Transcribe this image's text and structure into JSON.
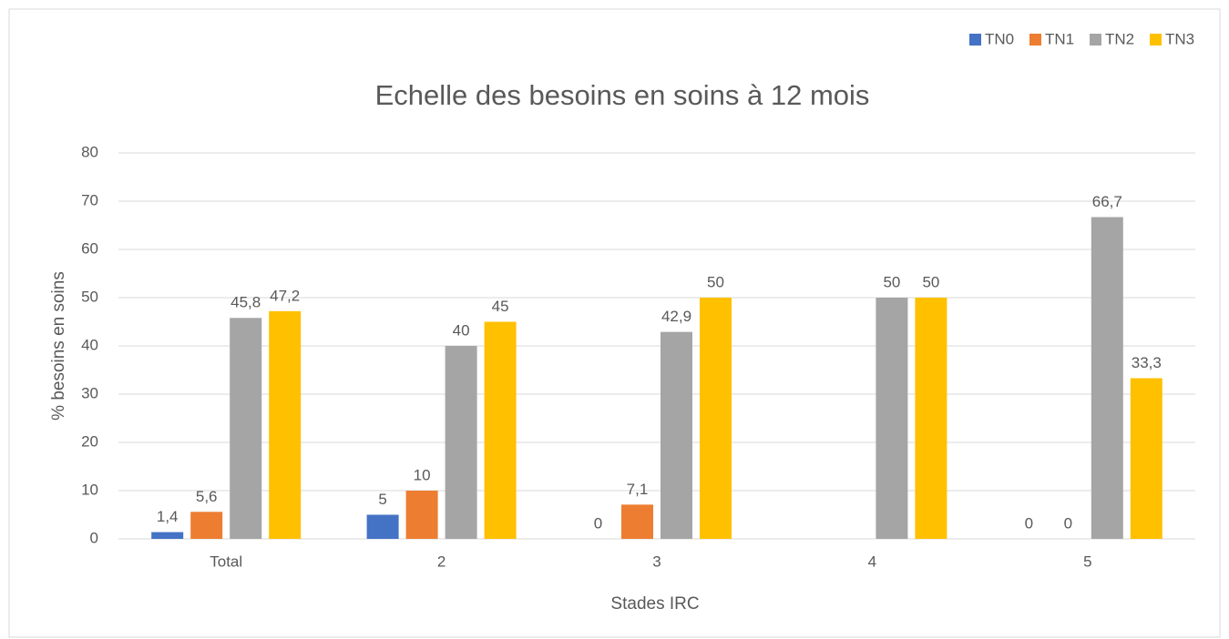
{
  "chart_data": {
    "type": "bar",
    "title": "Echelle des besoins en soins à 12 mois",
    "x_label": "Stades IRC",
    "y_label": "% besoins en soins",
    "categories": [
      "Total",
      "2",
      "3",
      "4",
      "5"
    ],
    "series": [
      {
        "name": "TN0",
        "color": "#4472c4",
        "values": [
          1.4,
          5,
          0,
          null,
          0
        ],
        "value_labels": [
          "1,4",
          "5",
          "0",
          null,
          "0"
        ]
      },
      {
        "name": "TN1",
        "color": "#ed7d31",
        "values": [
          5.6,
          10,
          7.1,
          null,
          0
        ],
        "value_labels": [
          "5,6",
          "10",
          "7,1",
          null,
          "0"
        ]
      },
      {
        "name": "TN2",
        "color": "#a5a5a5",
        "values": [
          45.8,
          40,
          42.9,
          50,
          66.7
        ],
        "value_labels": [
          "45,8",
          "40",
          "42,9",
          "50",
          "66,7"
        ]
      },
      {
        "name": "TN3",
        "color": "#ffc000",
        "values": [
          47.2,
          45,
          50,
          50,
          33.3
        ],
        "value_labels": [
          "47,2",
          "45",
          "50",
          "50",
          "33,3"
        ]
      }
    ],
    "ylim": [
      0,
      80
    ],
    "yticks": [
      0,
      10,
      20,
      30,
      40,
      50,
      60,
      70,
      80
    ],
    "grid": true,
    "legend": "top-right"
  }
}
